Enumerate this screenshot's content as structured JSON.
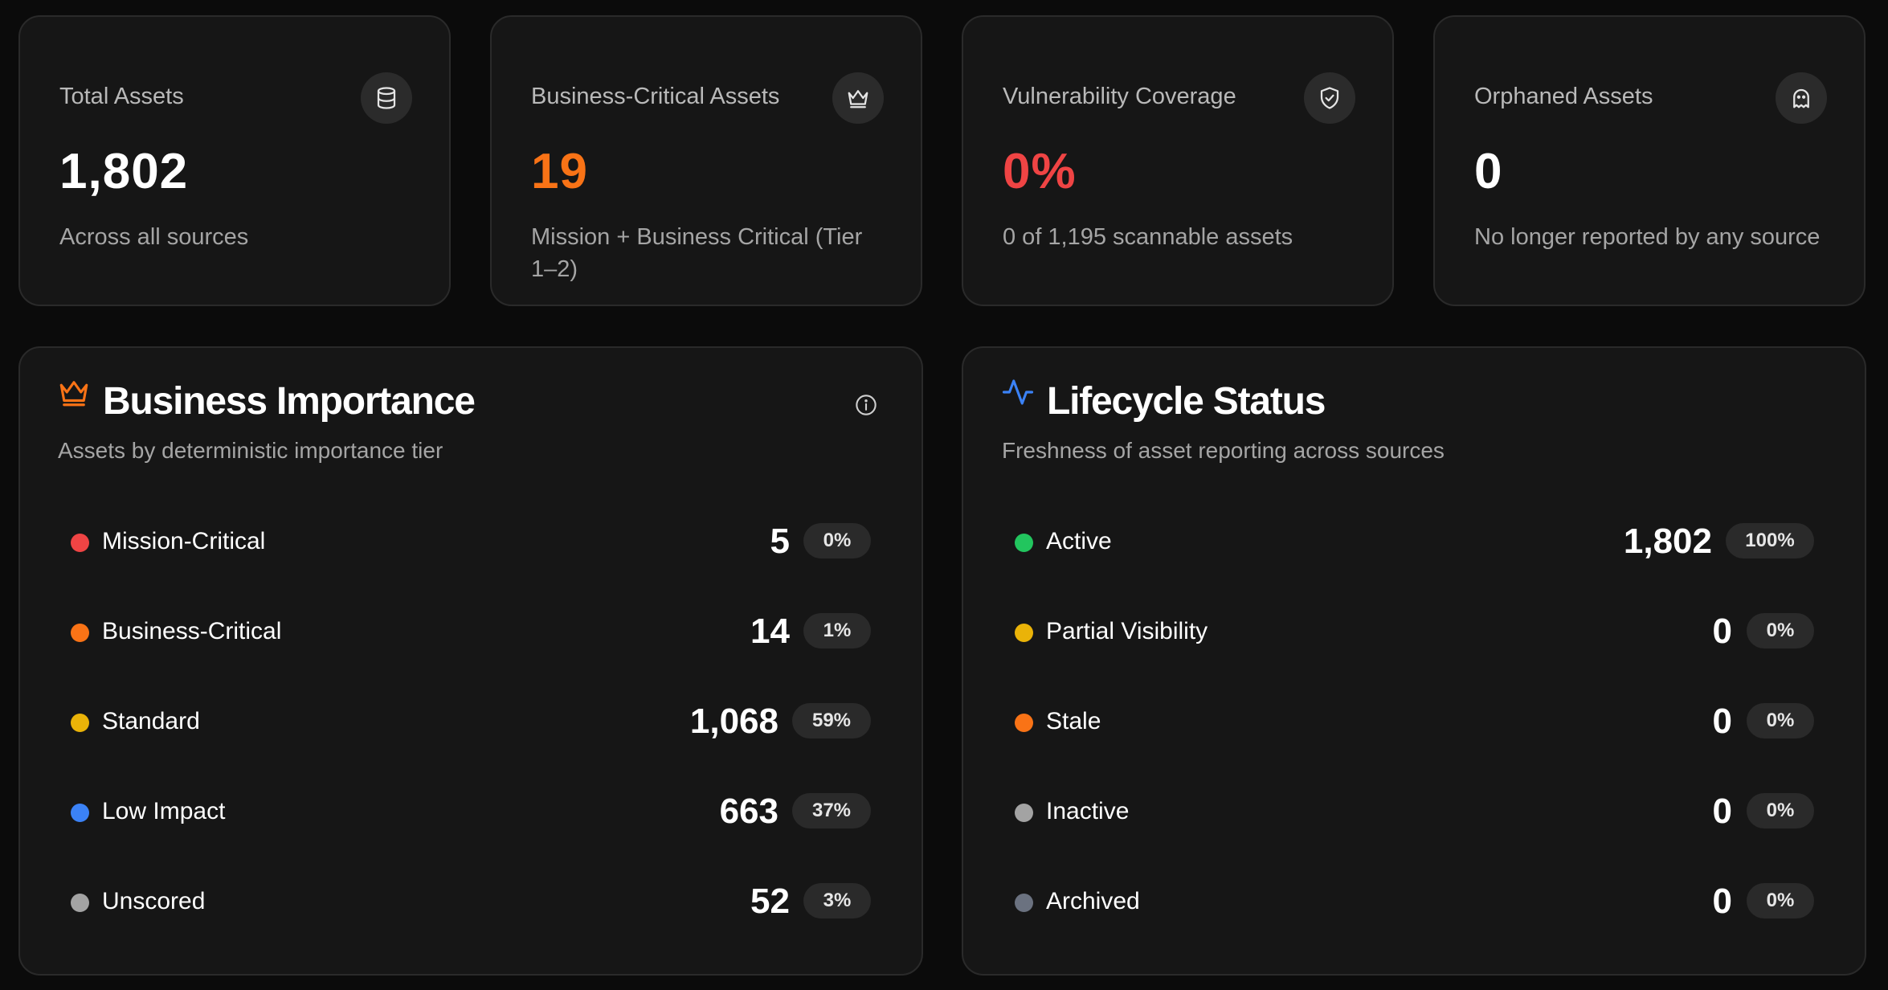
{
  "stats": [
    {
      "title": "Total Assets",
      "value": "1,802",
      "sub": "Across all sources",
      "icon": "database-icon",
      "color": "#ffffff"
    },
    {
      "title": "Business-Critical Assets",
      "value": "19",
      "sub": "Mission + Business Critical (Tier 1–2)",
      "icon": "crown-icon",
      "color": "#f97316"
    },
    {
      "title": "Vulnerability Coverage",
      "value": "0%",
      "sub": "0 of 1,195 scannable assets",
      "icon": "shield-check-icon",
      "color": "#ef4444"
    },
    {
      "title": "Orphaned Assets",
      "value": "0",
      "sub": "No longer reported by any source",
      "icon": "ghost-icon",
      "color": "#ffffff"
    }
  ],
  "importance": {
    "title": "Business Importance",
    "subtitle": "Assets by deterministic importance tier",
    "icon": "crown-icon",
    "info_icon": "info-icon",
    "rows": [
      {
        "label": "Mission-Critical",
        "count": "5",
        "pct": "0%",
        "color": "#ef4444"
      },
      {
        "label": "Business-Critical",
        "count": "14",
        "pct": "1%",
        "color": "#f97316"
      },
      {
        "label": "Standard",
        "count": "1,068",
        "pct": "59%",
        "color": "#eab308"
      },
      {
        "label": "Low Impact",
        "count": "663",
        "pct": "37%",
        "color": "#3b82f6"
      },
      {
        "label": "Unscored",
        "count": "52",
        "pct": "3%",
        "color": "#a3a3a3"
      }
    ]
  },
  "lifecycle": {
    "title": "Lifecycle Status",
    "subtitle": "Freshness of asset reporting across sources",
    "icon": "activity-icon",
    "rows": [
      {
        "label": "Active",
        "count": "1,802",
        "pct": "100%",
        "color": "#22c55e"
      },
      {
        "label": "Partial Visibility",
        "count": "0",
        "pct": "0%",
        "color": "#eab308"
      },
      {
        "label": "Stale",
        "count": "0",
        "pct": "0%",
        "color": "#f97316"
      },
      {
        "label": "Inactive",
        "count": "0",
        "pct": "0%",
        "color": "#a3a3a3"
      },
      {
        "label": "Archived",
        "count": "0",
        "pct": "0%",
        "color": "#6b7280"
      }
    ]
  }
}
